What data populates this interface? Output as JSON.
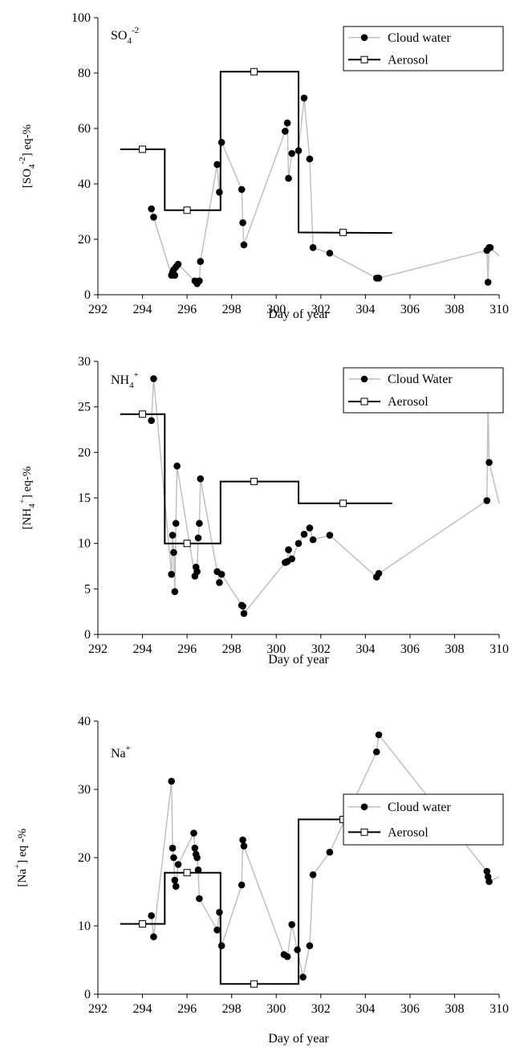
{
  "colors": {
    "cloud": "#c0c0c0",
    "aerosol": "#000000",
    "marker": "#000000"
  },
  "xlabel": "Day of year",
  "chart_data": [
    {
      "type": "line",
      "panel_label": {
        "main": "SO",
        "sub": "4",
        "sup": "-2"
      },
      "ylabel": "[SO4-2] eq-%",
      "ylabel_parts": {
        "pre": "[SO",
        "sub": "4",
        "sup": "-2",
        "post": "] eq-%"
      },
      "xlim": [
        292,
        310
      ],
      "ylim": [
        0,
        100
      ],
      "xticks": [
        292,
        294,
        296,
        298,
        300,
        302,
        304,
        306,
        308,
        310
      ],
      "yticks": [
        0,
        20,
        40,
        60,
        80,
        100
      ],
      "legend": {
        "position": "top-right",
        "entries": [
          "Cloud water",
          "Aerosol"
        ]
      },
      "series": [
        {
          "name": "Cloud water",
          "style": "line-dots",
          "x": [
            294.4,
            294.5,
            295.3,
            295.35,
            295.4,
            295.45,
            295.5,
            295.6,
            296.35,
            296.45,
            296.55,
            296.6,
            297.35,
            297.45,
            297.55,
            298.45,
            298.5,
            298.55,
            300.4,
            300.5,
            300.55,
            300.7,
            301.0,
            301.25,
            301.5,
            301.65,
            302.4,
            304.5,
            304.6,
            309.45,
            309.5,
            309.55,
            309.6,
            310.0
          ],
          "y": [
            31,
            28,
            7,
            8,
            9,
            7,
            10,
            11,
            5,
            4,
            5,
            12,
            47,
            37,
            55,
            38,
            26,
            18,
            59,
            62,
            42,
            51,
            52,
            71,
            49,
            17,
            15,
            6,
            6,
            16,
            4.5,
            17,
            17,
            14
          ]
        },
        {
          "name": "Aerosol",
          "style": "step",
          "x": [
            293,
            295,
            295,
            297.5,
            297.5,
            301,
            301,
            305.2
          ],
          "y": [
            52.5,
            52.5,
            30.5,
            30.5,
            80.5,
            80.5,
            22.5,
            22.3
          ],
          "markers_x": [
            294,
            296,
            299,
            303
          ],
          "markers_y": [
            52.5,
            30.5,
            80.5,
            22.5
          ]
        }
      ]
    },
    {
      "type": "line",
      "panel_label": {
        "main": "NH",
        "sub": "4",
        "sup": "+"
      },
      "ylabel": "[NH4+] eq-%",
      "ylabel_parts": {
        "pre": "[NH",
        "sub": "4",
        "sup": "+",
        "post": "] eq-%"
      },
      "xlim": [
        292,
        310
      ],
      "ylim": [
        0,
        30
      ],
      "xticks": [
        292,
        294,
        296,
        298,
        300,
        302,
        304,
        306,
        308,
        310
      ],
      "yticks": [
        0,
        5,
        10,
        15,
        20,
        25,
        30
      ],
      "legend": {
        "position": "top-right",
        "entries": [
          "Cloud Water",
          "Aerosol"
        ]
      },
      "series": [
        {
          "name": "Cloud Water",
          "style": "line-dots",
          "x": [
            294.4,
            294.5,
            295.3,
            295.35,
            295.4,
            295.45,
            295.5,
            295.55,
            296.35,
            296.4,
            296.45,
            296.5,
            296.55,
            296.6,
            297.35,
            297.45,
            297.55,
            298.45,
            298.5,
            298.55,
            300.4,
            300.5,
            300.55,
            300.7,
            301.0,
            301.25,
            301.5,
            301.65,
            302.4,
            304.5,
            304.6,
            309.45,
            309.5,
            309.55,
            310.0
          ],
          "y": [
            23.5,
            28.1,
            6.6,
            10.9,
            9.0,
            4.7,
            12.2,
            18.5,
            6.4,
            7.4,
            6.9,
            10.6,
            12.2,
            17.1,
            6.9,
            5.7,
            6.6,
            3.2,
            3.1,
            2.3,
            7.9,
            8.0,
            9.3,
            8.3,
            10.0,
            11.0,
            11.7,
            10.4,
            10.9,
            6.3,
            6.7,
            14.7,
            25.4,
            18.9,
            14.4
          ]
        },
        {
          "name": "Aerosol",
          "style": "step",
          "x": [
            293,
            295,
            295,
            297.5,
            297.5,
            301,
            301,
            305.2
          ],
          "y": [
            24.2,
            24.2,
            10,
            10,
            16.8,
            16.8,
            14.4,
            14.4
          ],
          "markers_x": [
            294,
            296,
            299,
            303
          ],
          "markers_y": [
            24.2,
            10,
            16.8,
            14.4
          ]
        }
      ]
    },
    {
      "type": "line",
      "panel_label": {
        "main": "Na",
        "sub": "",
        "sup": "+"
      },
      "ylabel": "[Na+] eq -%",
      "ylabel_parts": {
        "pre": "[Na",
        "sub": "",
        "sup": "+",
        "post": "] eq -%"
      },
      "xlim": [
        292,
        310
      ],
      "ylim": [
        0,
        40
      ],
      "xticks": [
        292,
        294,
        296,
        298,
        300,
        302,
        304,
        306,
        308,
        310
      ],
      "yticks": [
        0,
        10,
        20,
        30,
        40
      ],
      "legend": {
        "position": "upper-right",
        "entries": [
          "Cloud water",
          "Aerosol"
        ]
      },
      "series": [
        {
          "name": "Cloud water",
          "style": "line-dots",
          "x": [
            294.4,
            294.5,
            295.3,
            295.35,
            295.4,
            295.45,
            295.5,
            295.6,
            296.3,
            296.35,
            296.4,
            296.45,
            296.5,
            296.55,
            297.35,
            297.45,
            297.55,
            298.45,
            298.5,
            298.55,
            300.35,
            300.5,
            300.7,
            300.95,
            301.2,
            301.5,
            301.65,
            302.4,
            304.5,
            304.6,
            309.45,
            309.5,
            309.55,
            310.0
          ],
          "y": [
            11.5,
            8.4,
            31.2,
            21.4,
            20.0,
            16.7,
            15.8,
            19.0,
            23.6,
            21.4,
            20.5,
            20.0,
            18.2,
            14.0,
            9.4,
            12.0,
            7.1,
            16.0,
            22.6,
            21.7,
            5.8,
            5.5,
            10.2,
            6.5,
            2.5,
            7.1,
            17.5,
            20.8,
            35.5,
            38.0,
            18.0,
            17.2,
            16.5,
            17.2
          ]
        },
        {
          "name": "Aerosol",
          "style": "step",
          "x": [
            293,
            295,
            295,
            297.5,
            297.5,
            301,
            301,
            305.2
          ],
          "y": [
            10.3,
            10.3,
            17.8,
            17.8,
            1.5,
            1.5,
            25.6,
            25.6
          ],
          "markers_x": [
            294,
            296,
            299,
            303
          ],
          "markers_y": [
            10.3,
            17.8,
            1.5,
            25.6
          ]
        }
      ]
    }
  ]
}
